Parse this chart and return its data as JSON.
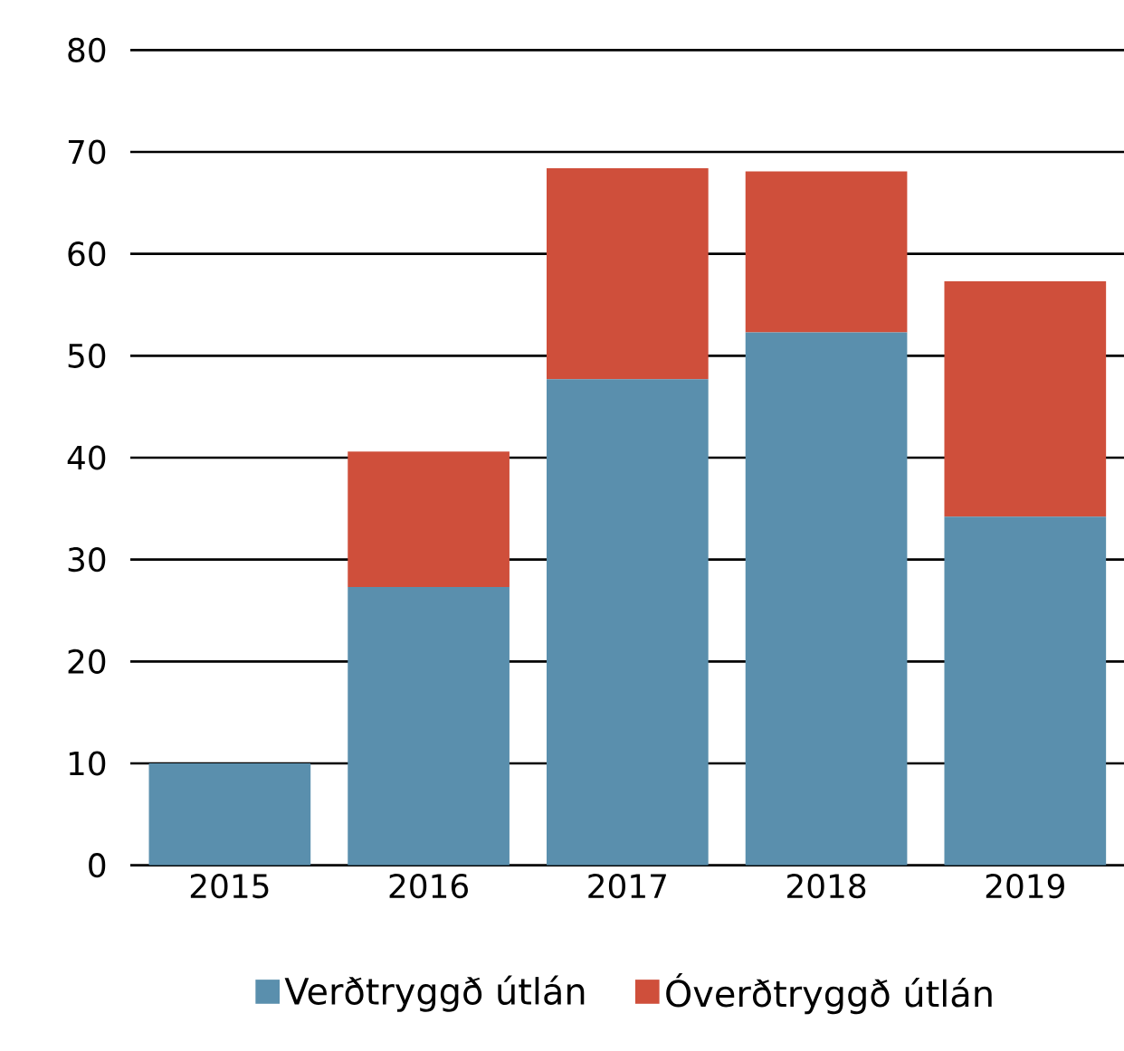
{
  "chart_data": {
    "type": "bar",
    "stacked": true,
    "categories": [
      "2015",
      "2016",
      "2017",
      "2018",
      "2019"
    ],
    "series": [
      {
        "name": "Verðtryggð útlán",
        "color": "#5a8fad",
        "values": [
          10,
          27.3,
          47.7,
          52.3,
          34.2
        ]
      },
      {
        "name": "Óverðtryggð útlán",
        "color": "#cf4f3b",
        "values": [
          0,
          13.3,
          20.7,
          15.8,
          23.1
        ]
      }
    ],
    "ylim": [
      0,
      80
    ],
    "yticks": [
      0,
      10,
      20,
      30,
      40,
      50,
      60,
      70,
      80
    ],
    "grid": "y",
    "legend": "bottom"
  }
}
